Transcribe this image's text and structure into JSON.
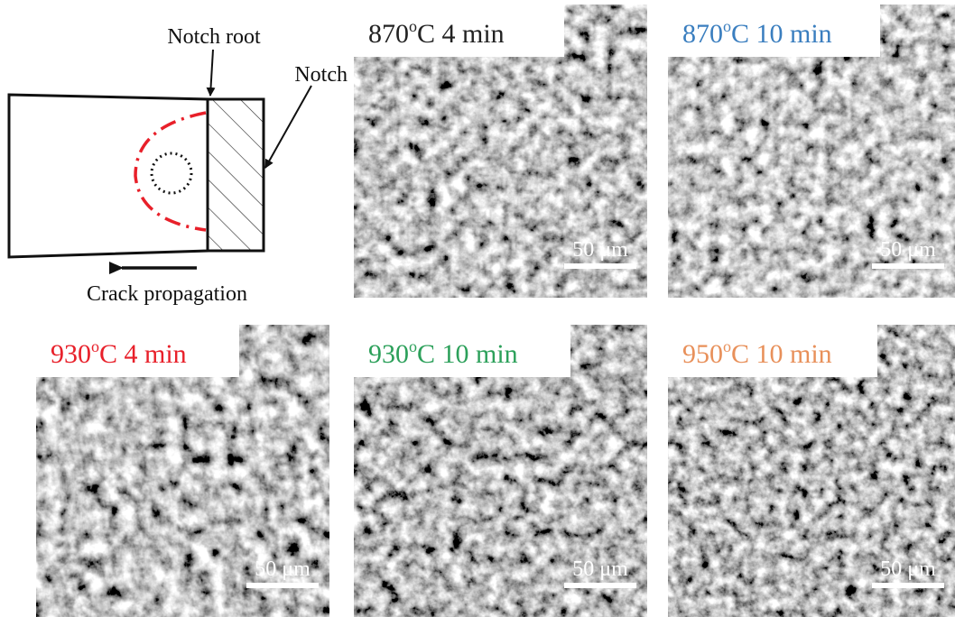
{
  "schematic": {
    "notch_root": "Notch root",
    "notch": "Notch",
    "crack": "Crack propagation"
  },
  "panels": [
    {
      "prefix": "870",
      "sup": "o",
      "suffix": "C 4 min",
      "scale_bar": "50 μm"
    },
    {
      "prefix": "870",
      "sup": "o",
      "suffix": "C 10 min",
      "scale_bar": "50 μm"
    },
    {
      "prefix": "930",
      "sup": "o",
      "suffix": "C 4 min",
      "scale_bar": "50 μm"
    },
    {
      "prefix": "930",
      "sup": "o",
      "suffix": "C 10 min",
      "scale_bar": "50 μm"
    },
    {
      "prefix": "950",
      "sup": "o",
      "suffix": "C 10 min",
      "scale_bar": "50 μm"
    }
  ]
}
